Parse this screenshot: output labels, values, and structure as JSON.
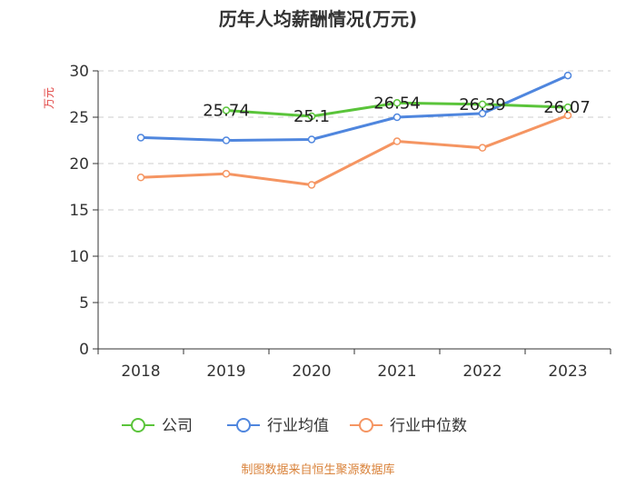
{
  "chart_data": {
    "type": "line",
    "title": "历年人均薪酬情况(万元)",
    "ylabel": "万元",
    "xlabel": "",
    "categories": [
      "2018",
      "2019",
      "2020",
      "2021",
      "2022",
      "2023"
    ],
    "ylim": [
      0,
      30
    ],
    "yticks": [
      0,
      5,
      10,
      15,
      20,
      25,
      30
    ],
    "grid": true,
    "legend_position": "bottom",
    "series": [
      {
        "name": "公司",
        "color": "#5ac43a",
        "values": [
          null,
          25.74,
          25.1,
          26.54,
          26.39,
          26.07
        ],
        "labels": [
          null,
          "25.74",
          "25.1",
          "26.54",
          "26.39",
          "26.07"
        ]
      },
      {
        "name": "行业均值",
        "color": "#4f86de",
        "values": [
          22.8,
          22.5,
          22.6,
          25.0,
          25.4,
          29.5
        ],
        "labels": null
      },
      {
        "name": "行业中位数",
        "color": "#f59562",
        "values": [
          18.5,
          18.9,
          17.7,
          22.4,
          21.7,
          25.2
        ],
        "labels": null
      }
    ],
    "ylabel_color": "#e0413f"
  },
  "source_text": "制图数据来自恒生聚源数据库",
  "source_color": "#d9823a"
}
